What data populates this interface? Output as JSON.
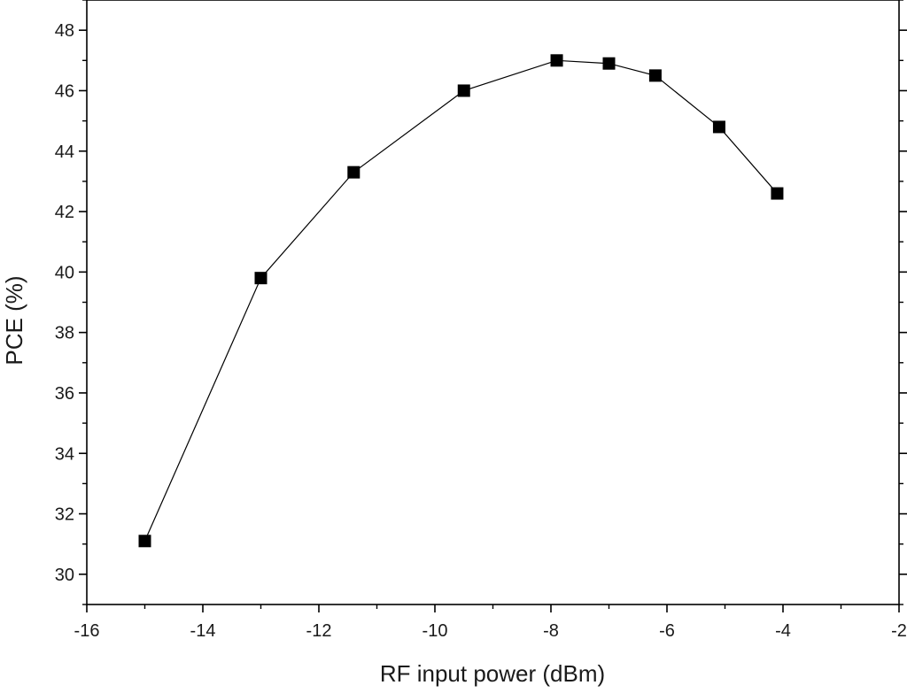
{
  "chart_data": {
    "type": "line",
    "title": "",
    "xlabel": "RF input power (dBm)",
    "ylabel": "PCE (%)",
    "xlim": [
      -16,
      -2
    ],
    "ylim": [
      29,
      49
    ],
    "x_ticks": [
      -16,
      -14,
      -12,
      -10,
      -8,
      -6,
      -4,
      -2
    ],
    "x_tick_labels": [
      "-16",
      "-14",
      "-12",
      "-10",
      "-8",
      "-6",
      "-4",
      "-2"
    ],
    "y_ticks": [
      30,
      32,
      34,
      36,
      38,
      40,
      42,
      44,
      46,
      48
    ],
    "y_tick_labels": [
      "30",
      "32",
      "34",
      "36",
      "38",
      "40",
      "42",
      "44",
      "46",
      "48"
    ],
    "grid": false,
    "legend": "none",
    "marker": "square",
    "series": [
      {
        "x": [
          -15,
          -13,
          -11.4,
          -9.5,
          -7.9,
          -7,
          -6.2,
          -5.1,
          -4.1
        ],
        "y": [
          31.1,
          39.8,
          43.3,
          46.0,
          47.0,
          46.9,
          46.5,
          44.8,
          42.6
        ],
        "color": "#000000"
      }
    ]
  }
}
